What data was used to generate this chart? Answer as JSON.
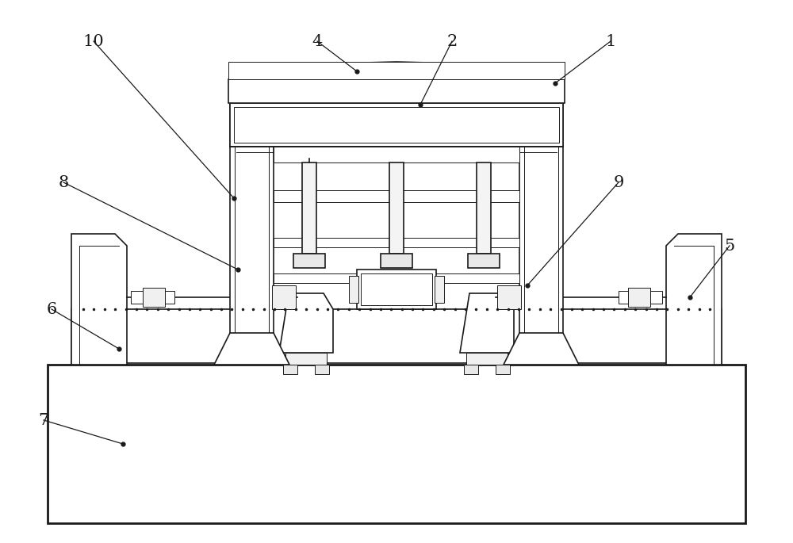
{
  "bg_color": "#ffffff",
  "line_color": "#1a1a1a",
  "lw": 1.2,
  "lw_thick": 2.0,
  "lw_thin": 0.7,
  "fig_width": 10.0,
  "fig_height": 6.85,
  "dpi": 100
}
